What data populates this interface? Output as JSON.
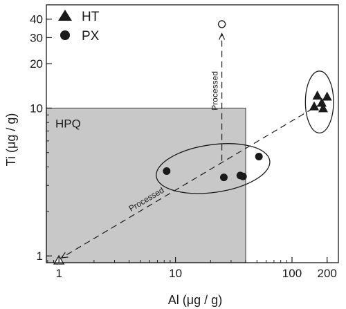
{
  "chart_data": {
    "type": "scatter",
    "xlabel": "Al (μg / g)",
    "ylabel": "Ti (μg / g)",
    "x_scale": "log",
    "y_scale": "log",
    "xlim": [
      0.78,
      250
    ],
    "ylim": [
      0.9,
      50
    ],
    "x_ticks": [
      {
        "value": 1,
        "label": "1"
      },
      {
        "value": 10,
        "label": "10"
      },
      {
        "value": 100,
        "label": "100"
      },
      {
        "value": 200,
        "label": "200"
      }
    ],
    "y_ticks": [
      {
        "value": 1,
        "label": "1"
      },
      {
        "value": 10,
        "label": "10"
      },
      {
        "value": 20,
        "label": "20"
      },
      {
        "value": 30,
        "label": "30"
      },
      {
        "value": 40,
        "label": "40"
      }
    ],
    "legend_position": "top-left",
    "series": [
      {
        "name": "HT",
        "marker": "triangle",
        "color": "#1a1a1a",
        "points": [
          {
            "x": 165,
            "y": 12.2
          },
          {
            "x": 200,
            "y": 12.0
          },
          {
            "x": 180,
            "y": 10.9
          },
          {
            "x": 155,
            "y": 10.3
          },
          {
            "x": 185,
            "y": 10.0
          }
        ]
      },
      {
        "name": "PX",
        "marker": "circle",
        "color": "#1a1a1a",
        "points": [
          {
            "x": 8.4,
            "y": 3.75
          },
          {
            "x": 26,
            "y": 3.4
          },
          {
            "x": 36,
            "y": 3.5
          },
          {
            "x": 38,
            "y": 3.45
          },
          {
            "x": 52,
            "y": 4.7
          }
        ]
      }
    ],
    "region": {
      "label": "HPQ",
      "x_range": [
        0.78,
        40
      ],
      "y_range": [
        0.9,
        10
      ],
      "fill": "#c8c8c8"
    },
    "processed_points": [
      {
        "x": 1.0,
        "y": 0.93,
        "marker": "open-triangle"
      },
      {
        "x": 25,
        "y": 37,
        "marker": "open-circle"
      }
    ],
    "processed_arrows": [
      {
        "from": [
          180,
          10.8
        ],
        "to": [
          1.05,
          0.97
        ],
        "label": "Processed"
      },
      {
        "from": [
          25,
          4.4
        ],
        "to": [
          25,
          32
        ],
        "label": "Processed"
      }
    ],
    "clusters": [
      {
        "cx": 172,
        "cy": 11.0,
        "rx_factor": 1.32,
        "ry_factor": 1.62
      },
      {
        "cx": 21,
        "cy": 3.9,
        "rx_factor": 3.1,
        "ry_factor": 1.45
      }
    ]
  }
}
